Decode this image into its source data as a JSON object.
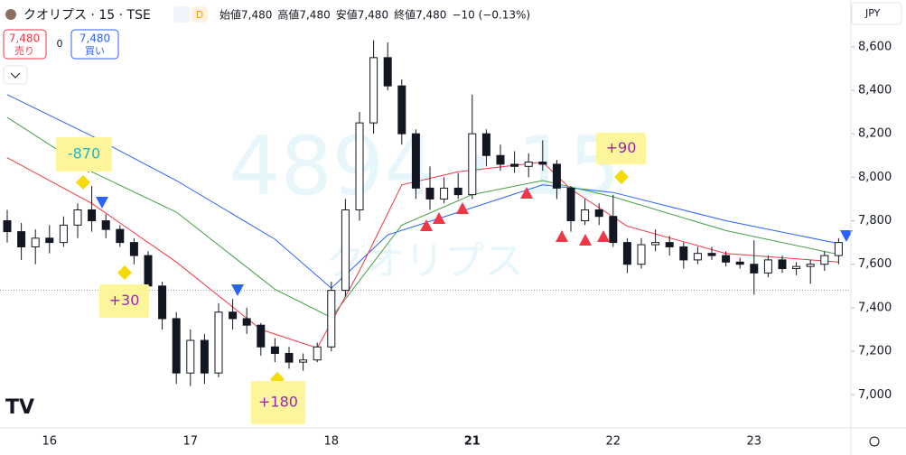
{
  "header": {
    "symbol": "クオリプス · 15 · TSE",
    "interval": "D",
    "ohlc": [
      "始値7,480",
      "高値7,480",
      "安値7,480",
      "終値7,480",
      "−10 (−0.13%)"
    ],
    "sell": {
      "price": "7,480",
      "label": "売り"
    },
    "quantity": "0",
    "buy": {
      "price": "7,480",
      "label": "買い"
    },
    "currency": "JPY"
  },
  "watermark": {
    "code": "4894・15",
    "name": "クオリプス"
  },
  "chart_data": {
    "type": "candlestick",
    "categories": [
      null,
      null,
      null,
      "16",
      null,
      null,
      null,
      null,
      null,
      null,
      null,
      null,
      null,
      "17",
      null,
      null,
      null,
      null,
      null,
      null,
      null,
      null,
      null,
      "18",
      null,
      null,
      null,
      null,
      null,
      null,
      null,
      null,
      null,
      "21",
      null,
      null,
      null,
      null,
      null,
      null,
      null,
      null,
      null,
      "22",
      null,
      null,
      null,
      null,
      null,
      null,
      null,
      null,
      null,
      "23",
      null,
      null,
      null,
      null,
      null,
      null
    ],
    "open": [
      7800,
      7750,
      7680,
      7720,
      7700,
      7780,
      7850,
      7800,
      7760,
      7700,
      7640,
      7500,
      7350,
      7100,
      7250,
      7100,
      7380,
      7350,
      7320,
      7220,
      7190,
      7150,
      7160,
      7220,
      7480,
      7850,
      8250,
      8550,
      8420,
      8200,
      7950,
      7900,
      7950,
      7920,
      8200,
      8100,
      8060,
      8050,
      8070,
      8060,
      7950,
      7800,
      7850,
      7820,
      7700,
      7600,
      7690,
      7700,
      7680,
      7620,
      7650,
      7640,
      7610,
      7600,
      7560,
      7620,
      7580,
      7590,
      7600,
      7640
    ],
    "high": [
      7850,
      7790,
      7760,
      7780,
      7820,
      7880,
      7960,
      7830,
      7780,
      7720,
      7660,
      7520,
      7380,
      7300,
      7280,
      7420,
      7440,
      7400,
      7330,
      7260,
      7220,
      7190,
      7240,
      7520,
      7900,
      8300,
      8630,
      8620,
      8450,
      8220,
      8050,
      8000,
      8020,
      8380,
      8220,
      8150,
      8120,
      8110,
      8170,
      8080,
      7960,
      7900,
      7880,
      7920,
      7720,
      7720,
      7760,
      7730,
      7700,
      7680,
      7680,
      7660,
      7630,
      7710,
      7640,
      7640,
      7610,
      7620,
      7660,
      7720
    ],
    "low": [
      7700,
      7620,
      7600,
      7650,
      7680,
      7720,
      7750,
      7720,
      7680,
      7600,
      7450,
      7300,
      7050,
      7040,
      7050,
      7080,
      7300,
      7280,
      7180,
      7150,
      7120,
      7110,
      7150,
      7200,
      7450,
      7800,
      8200,
      8400,
      8150,
      7900,
      7850,
      7880,
      7900,
      7900,
      8050,
      8030,
      8020,
      8000,
      8030,
      7900,
      7750,
      7780,
      7780,
      7680,
      7560,
      7580,
      7660,
      7640,
      7580,
      7600,
      7620,
      7590,
      7580,
      7460,
      7540,
      7560,
      7550,
      7510,
      7570,
      7600
    ],
    "close": [
      7750,
      7680,
      7720,
      7700,
      7780,
      7850,
      7800,
      7760,
      7700,
      7640,
      7500,
      7350,
      7100,
      7250,
      7100,
      7380,
      7350,
      7320,
      7220,
      7190,
      7150,
      7160,
      7220,
      7480,
      7850,
      8250,
      8550,
      8420,
      8200,
      7950,
      7900,
      7950,
      7920,
      8200,
      8100,
      8060,
      8050,
      8070,
      8060,
      7950,
      7800,
      7850,
      7820,
      7700,
      7600,
      7690,
      7700,
      7680,
      7620,
      7650,
      7640,
      7610,
      7600,
      7560,
      7620,
      7580,
      7590,
      7600,
      7640,
      7700
    ],
    "lines": [
      {
        "color": "#2962ff",
        "x": [
          0,
          6,
          12,
          19,
          23,
          27,
          33,
          38,
          43,
          51,
          59
        ],
        "values": [
          8380,
          8190,
          7985,
          7715,
          7490,
          7735,
          7860,
          7965,
          7930,
          7800,
          7695
        ]
      },
      {
        "color": "#43a047",
        "x": [
          0,
          6,
          12,
          19,
          23,
          28,
          33,
          38,
          43,
          51,
          59
        ],
        "values": [
          8275,
          8025,
          7840,
          7485,
          7355,
          7780,
          7920,
          7985,
          7910,
          7755,
          7645
        ]
      },
      {
        "color": "#f23645",
        "x": [
          0,
          6,
          12,
          18,
          22,
          25,
          28,
          32,
          38,
          40,
          44,
          51,
          59
        ],
        "values": [
          8090,
          7880,
          7610,
          7300,
          7215,
          7570,
          7965,
          8025,
          8070,
          7945,
          7775,
          7650,
          7610
        ]
      }
    ],
    "last_price": 7480,
    "annotations": [
      {
        "text": "-870",
        "color": "#26b4c9"
      },
      {
        "text": "+30",
        "color": "#9c27b0"
      },
      {
        "text": "+180",
        "color": "#9c27b0"
      },
      {
        "text": "+90",
        "color": "#9c27b0"
      }
    ],
    "ylim": [
      6860,
      8815
    ],
    "yticks": [
      {
        "value": 7000,
        "label": "7,000"
      },
      {
        "value": 7200,
        "label": "7,200"
      },
      {
        "value": 7400,
        "label": "7,400"
      },
      {
        "value": 7600,
        "label": "7,600"
      },
      {
        "value": 7800,
        "label": "7,800"
      },
      {
        "value": 8000,
        "label": "8,000"
      },
      {
        "value": 8200,
        "label": "8,200"
      },
      {
        "value": 8400,
        "label": "8,400"
      },
      {
        "value": 8600,
        "label": "8,600"
      }
    ]
  }
}
